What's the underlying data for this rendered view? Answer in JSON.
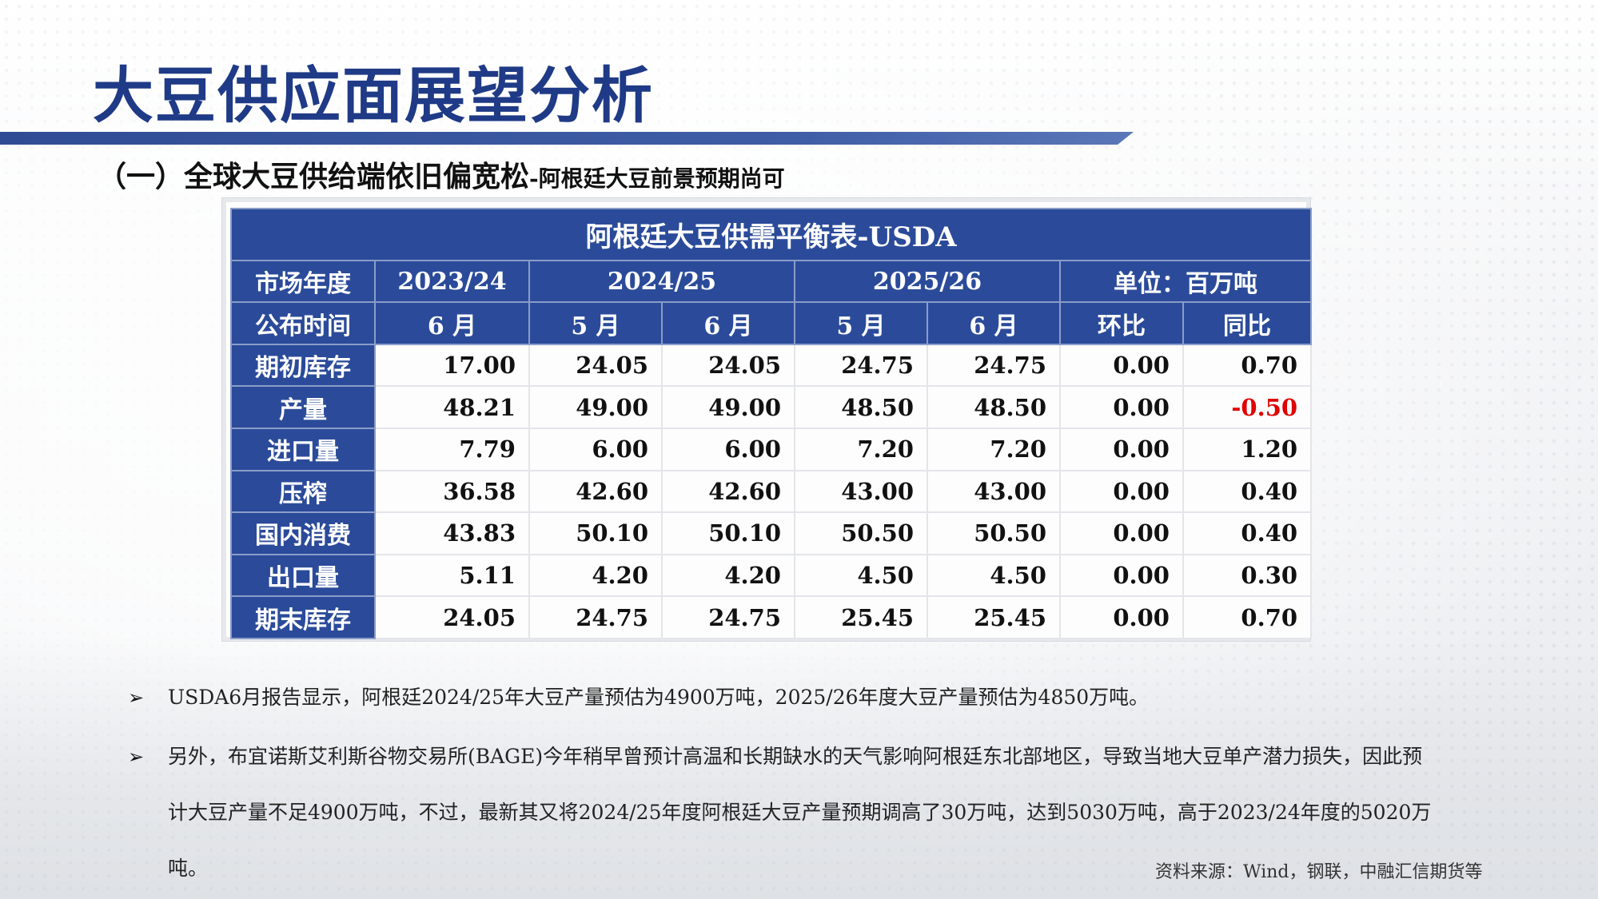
{
  "page": {
    "title": "大豆供应面展望分析",
    "subtitle_main": "（一）全球大豆供给端依旧偏宽松",
    "subtitle_sub": "-阿根廷大豆前景预期尚可"
  },
  "table": {
    "caption": "阿根廷大豆供需平衡表-USDA",
    "row1": {
      "label": "市场年度",
      "y2023": "2023/24",
      "y2024": "2024/25",
      "y2025": "2025/26",
      "unit": "单位：百万吨"
    },
    "row2": {
      "label": "公布时间",
      "cols": [
        "6 月",
        "5 月",
        "6 月",
        "5 月",
        "6 月",
        "环比",
        "同比"
      ]
    },
    "rows": [
      {
        "label": "期初库存",
        "values": [
          "17.00",
          "24.05",
          "24.05",
          "24.75",
          "24.75",
          "0.00",
          "0.70"
        ]
      },
      {
        "label": "产量",
        "values": [
          "48.21",
          "49.00",
          "49.00",
          "48.50",
          "48.50",
          "0.00",
          "-0.50"
        ]
      },
      {
        "label": "进口量",
        "values": [
          "7.79",
          "6.00",
          "6.00",
          "7.20",
          "7.20",
          "0.00",
          "1.20"
        ]
      },
      {
        "label": "压榨",
        "values": [
          "36.58",
          "42.60",
          "42.60",
          "43.00",
          "43.00",
          "0.00",
          "0.40"
        ]
      },
      {
        "label": "国内消费",
        "values": [
          "43.83",
          "50.10",
          "50.10",
          "50.50",
          "50.50",
          "0.00",
          "0.40"
        ]
      },
      {
        "label": "出口量",
        "values": [
          "5.11",
          "4.20",
          "4.20",
          "4.50",
          "4.50",
          "0.00",
          "0.30"
        ]
      },
      {
        "label": "期末库存",
        "values": [
          "24.05",
          "24.75",
          "24.75",
          "25.45",
          "25.45",
          "0.00",
          "0.70"
        ]
      }
    ],
    "negative_color": "#e00000"
  },
  "bullets": [
    "USDA6月报告显示，阿根廷2024/25年大豆产量预估为4900万吨，2025/26年度大豆产量预估为4850万吨。",
    "另外，布宜诺斯艾利斯谷物交易所(BAGE)今年稍早曾预计高温和长期缺水的天气影响阿根廷东北部地区，导致当地大豆单产潜力损失，因此预计大豆产量不足4900万吨，不过，最新其又将2024/25年度阿根廷大豆产量预期调高了30万吨，达到5030万吨，高于2023/24年度的5020万吨。"
  ],
  "source": "资料来源：Wind，钢联，中融汇信期货等",
  "colors": {
    "title": "#1f3a86",
    "header_bg": "#2b4b9a"
  }
}
